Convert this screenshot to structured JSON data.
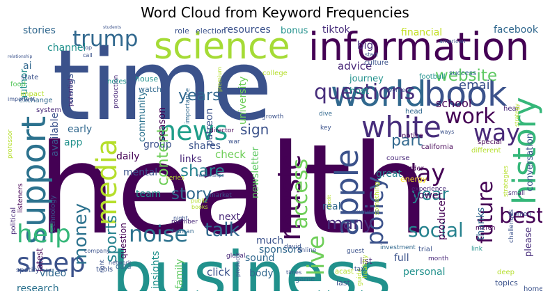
{
  "title": "Word Cloud from Keyword Frequencies",
  "words": [
    {
      "text": "health",
      "color": "#440154"
    },
    {
      "text": "business",
      "color": "#21918c"
    },
    {
      "text": "time",
      "color": "#3b528b"
    },
    {
      "text": "information",
      "color": "#440154"
    },
    {
      "text": "world",
      "color": "#31688e"
    },
    {
      "text": "science",
      "color": "#a5db36"
    },
    {
      "text": "book",
      "color": "#3b528b"
    },
    {
      "text": "history",
      "color": "#35b779"
    },
    {
      "text": "white",
      "color": "#472d7b"
    },
    {
      "text": "support",
      "color": "#2c728e"
    },
    {
      "text": "apple",
      "color": "#3b528b"
    },
    {
      "text": "music",
      "color": "#440154"
    },
    {
      "text": "news",
      "color": "#1f9e89"
    },
    {
      "text": "media",
      "color": "#b5de2b"
    },
    {
      "text": "sleep",
      "color": "#3b528b"
    },
    {
      "text": "trump",
      "color": "#31688e"
    },
    {
      "text": "questions",
      "color": "#472d7b"
    },
    {
      "text": "help",
      "color": "#35b779"
    },
    {
      "text": "noise",
      "color": "#2c728e"
    },
    {
      "text": "policy",
      "color": "#3b528b"
    },
    {
      "text": "live",
      "color": "#6ece58"
    },
    {
      "text": "access",
      "color": "#6ece58"
    },
    {
      "text": "work",
      "color": "#440154"
    },
    {
      "text": "way",
      "color": "#482878"
    },
    {
      "text": "best",
      "color": "#440154"
    },
    {
      "text": "talk",
      "color": "#31688e"
    },
    {
      "text": "social",
      "color": "#26828e"
    },
    {
      "text": "day",
      "color": "#440154"
    },
    {
      "text": "future",
      "color": "#440154"
    },
    {
      "text": "money",
      "color": "#2c728e"
    },
    {
      "text": "website",
      "color": "#5ec962"
    },
    {
      "text": "story",
      "color": "#31688e"
    },
    {
      "text": "years",
      "color": "#31688e"
    },
    {
      "text": "year",
      "color": "#26828e"
    },
    {
      "text": "share",
      "color": "#26828e"
    },
    {
      "text": "many",
      "color": "#472d7b"
    },
    {
      "text": "content",
      "color": "#6ece58"
    },
    {
      "text": "sign",
      "color": "#3b528b"
    },
    {
      "text": "part",
      "color": "#31688e"
    },
    {
      "text": "sports",
      "color": "#26828e"
    },
    {
      "text": "email",
      "color": "#3b528b"
    },
    {
      "text": "advice",
      "color": "#482878"
    },
    {
      "text": "school",
      "color": "#440154"
    },
    {
      "text": "facebook",
      "color": "#31688e"
    },
    {
      "text": "resources",
      "color": "#3b528b"
    },
    {
      "text": "tiktok",
      "color": "#472d7b"
    },
    {
      "text": "bonus",
      "color": "#21918c"
    },
    {
      "text": "financial",
      "color": "#c2df23"
    },
    {
      "text": "channel",
      "color": "#21918c"
    },
    {
      "text": "big",
      "color": "#472d7b"
    },
    {
      "text": "stories",
      "color": "#31688e"
    },
    {
      "text": "things",
      "color": "#3b528b"
    },
    {
      "text": "author",
      "color": "#21918c"
    },
    {
      "text": "community",
      "color": "#2c728e"
    },
    {
      "text": "season",
      "color": "#440154"
    },
    {
      "text": "patreon",
      "color": "#3b528b"
    },
    {
      "text": "university",
      "color": "#6ece58"
    },
    {
      "text": "host",
      "color": "#21918c"
    },
    {
      "text": "journey",
      "color": "#21918c"
    },
    {
      "text": "early",
      "color": "#31688e"
    },
    {
      "text": "daily",
      "color": "#440154"
    },
    {
      "text": "mental",
      "color": "#3b528b"
    },
    {
      "text": "available",
      "color": "#3b528b"
    },
    {
      "text": "app",
      "color": "#21918c"
    },
    {
      "text": "group",
      "color": "#3b528b"
    },
    {
      "text": "shares",
      "color": "#3b528b"
    },
    {
      "text": "check",
      "color": "#6ece58"
    },
    {
      "text": "links",
      "color": "#482878"
    },
    {
      "text": "great",
      "color": "#26828e"
    },
    {
      "text": "power",
      "color": "#440154"
    },
    {
      "text": "team",
      "color": "#21918c"
    },
    {
      "text": "next",
      "color": "#482878"
    },
    {
      "text": "newsletter",
      "color": "#5ec962"
    },
    {
      "text": "real",
      "color": "#31688e"
    },
    {
      "text": "conversation",
      "color": "#3b528b"
    },
    {
      "text": "thanks",
      "color": "#31688e"
    },
    {
      "text": "producer",
      "color": "#440154"
    },
    {
      "text": "please",
      "color": "#472d7b"
    },
    {
      "text": "research",
      "color": "#2c728e"
    },
    {
      "text": "video",
      "color": "#31688e"
    },
    {
      "text": "latest",
      "color": "#440154"
    },
    {
      "text": "question",
      "color": "#440154"
    },
    {
      "text": "insights",
      "color": "#21918c"
    },
    {
      "text": "family",
      "color": "#5ec962"
    },
    {
      "text": "much",
      "color": "#3b528b"
    },
    {
      "text": "sponsors",
      "color": "#31688e"
    },
    {
      "text": "click",
      "color": "#3b528b"
    },
    {
      "text": "sound",
      "color": "#31688e"
    },
    {
      "text": "body",
      "color": "#31688e"
    },
    {
      "text": "full",
      "color": "#3b528b"
    },
    {
      "text": "personal",
      "color": "#21918c"
    },
    {
      "text": "list",
      "color": "#482878"
    },
    {
      "text": "topics",
      "color": "#3b528b"
    },
    {
      "text": "home",
      "color": "#3b528b"
    },
    {
      "text": "california",
      "color": "#440154"
    },
    {
      "text": "tools",
      "color": "#3b528b"
    },
    {
      "text": "data",
      "color": "#31688e"
    },
    {
      "text": "spotify",
      "color": "#3b528b"
    },
    {
      "text": "technology",
      "color": "#3b528b"
    },
    {
      "text": "political",
      "color": "#482878"
    },
    {
      "text": "listeners",
      "color": "#440154"
    },
    {
      "text": "professor",
      "color": "#b5de2b"
    },
    {
      "text": "ai",
      "color": "#31688e"
    },
    {
      "text": "food",
      "color": "#5ec962"
    },
    {
      "text": "state",
      "color": "#3b528b"
    },
    {
      "text": "impact",
      "color": "#b5de2b"
    },
    {
      "text": "exchange",
      "color": "#31688e"
    },
    {
      "text": "system",
      "color": "#482878"
    },
    {
      "text": "potential",
      "color": "#482878"
    },
    {
      "text": "production",
      "color": "#482878"
    },
    {
      "text": "psychology",
      "color": "#3b528b"
    },
    {
      "text": "notes",
      "color": "#21918c"
    },
    {
      "text": "watch",
      "color": "#31688e"
    },
    {
      "text": "house",
      "color": "#21918c"
    },
    {
      "text": "role",
      "color": "#3b528b"
    },
    {
      "text": "election",
      "color": "#3b528b"
    },
    {
      "text": "importance",
      "color": "#31688e"
    },
    {
      "text": "director",
      "color": "#440154"
    },
    {
      "text": "war",
      "color": "#3b528b"
    },
    {
      "text": "premium",
      "color": "#b5de2b"
    },
    {
      "text": "growth",
      "color": "#3b528b"
    },
    {
      "text": "college",
      "color": "#b5de2b"
    },
    {
      "text": "dive",
      "color": "#31688e"
    },
    {
      "text": "key",
      "color": "#3b528b"
    },
    {
      "text": "culture",
      "color": "#3b528b"
    },
    {
      "text": "success",
      "color": "#31688e"
    },
    {
      "text": "football",
      "color": "#21918c"
    },
    {
      "text": "hear",
      "color": "#482878"
    },
    {
      "text": "strategy",
      "color": "#b5de2b"
    },
    {
      "text": "head",
      "color": "#31688e"
    },
    {
      "text": "notice",
      "color": "#440154"
    },
    {
      "text": "special",
      "color": "#440154"
    },
    {
      "text": "different",
      "color": "#b5de2b"
    },
    {
      "text": "course",
      "color": "#482878"
    },
    {
      "text": "experience",
      "color": "#482878"
    },
    {
      "text": "energy",
      "color": "#fde725"
    },
    {
      "text": "order",
      "color": "#440154"
    },
    {
      "text": "something",
      "color": "#b5de2b"
    },
    {
      "text": "strategies",
      "color": "#b5de2b"
    },
    {
      "text": "small",
      "color": "#482878"
    },
    {
      "text": "women",
      "color": "#3b528b"
    },
    {
      "text": "merch",
      "color": "#440154"
    },
    {
      "text": "investment",
      "color": "#31688e"
    },
    {
      "text": "trial",
      "color": "#3b528b"
    },
    {
      "text": "month",
      "color": "#482878"
    },
    {
      "text": "challenges",
      "color": "#3b528b"
    },
    {
      "text": "deep",
      "color": "#b5de2b"
    },
    {
      "text": "link",
      "color": "#21918c"
    },
    {
      "text": "guide",
      "color": "#b5de2b"
    },
    {
      "text": "healthy",
      "color": "#b5de2b"
    },
    {
      "text": "last",
      "color": "#3b528b"
    },
    {
      "text": "tax",
      "color": "#3b528b"
    },
    {
      "text": "acast",
      "color": "#b5de2b"
    },
    {
      "text": "game",
      "color": "#31688e"
    },
    {
      "text": "times",
      "color": "#3b528b"
    },
    {
      "text": "online",
      "color": "#3b528b"
    },
    {
      "text": "guest",
      "color": "#3b528b"
    },
    {
      "text": "david",
      "color": "#3b528b"
    },
    {
      "text": "global",
      "color": "#482878"
    },
    {
      "text": "products",
      "color": "#3b528b"
    },
    {
      "text": "member",
      "color": "#482878"
    },
    {
      "text": "human",
      "color": "#31688e"
    },
    {
      "text": "night",
      "color": "#3b528b"
    },
    {
      "text": "books",
      "color": "#b5de2b"
    },
    {
      "text": "market",
      "color": "#3b528b"
    },
    {
      "text": "public",
      "color": "#b5de2b"
    },
    {
      "text": "series",
      "color": "#b5de2b"
    },
    {
      "text": "company",
      "color": "#3b528b"
    },
    {
      "text": "network",
      "color": "#3b528b"
    },
    {
      "text": "right",
      "color": "#3b528b"
    },
    {
      "text": "important",
      "color": "#3b528b"
    },
    {
      "text": "american",
      "color": "#3b528b"
    },
    {
      "text": "favorite",
      "color": "#3b528b"
    },
    {
      "text": "start",
      "color": "#3b528b"
    },
    {
      "text": "students",
      "color": "#3b528b"
    },
    {
      "text": "relationship",
      "color": "#3b528b"
    },
    {
      "text": "top",
      "color": "#3b528b"
    },
    {
      "text": "call",
      "color": "#3b528b"
    },
    {
      "text": "ways",
      "color": "#3b528b"
    },
    {
      "text": "credit",
      "color": "#b5de2b"
    },
    {
      "text": "relationships",
      "color": "#3b528b"
    },
    {
      "text": "exclusive",
      "color": "#3b528b"
    }
  ]
}
